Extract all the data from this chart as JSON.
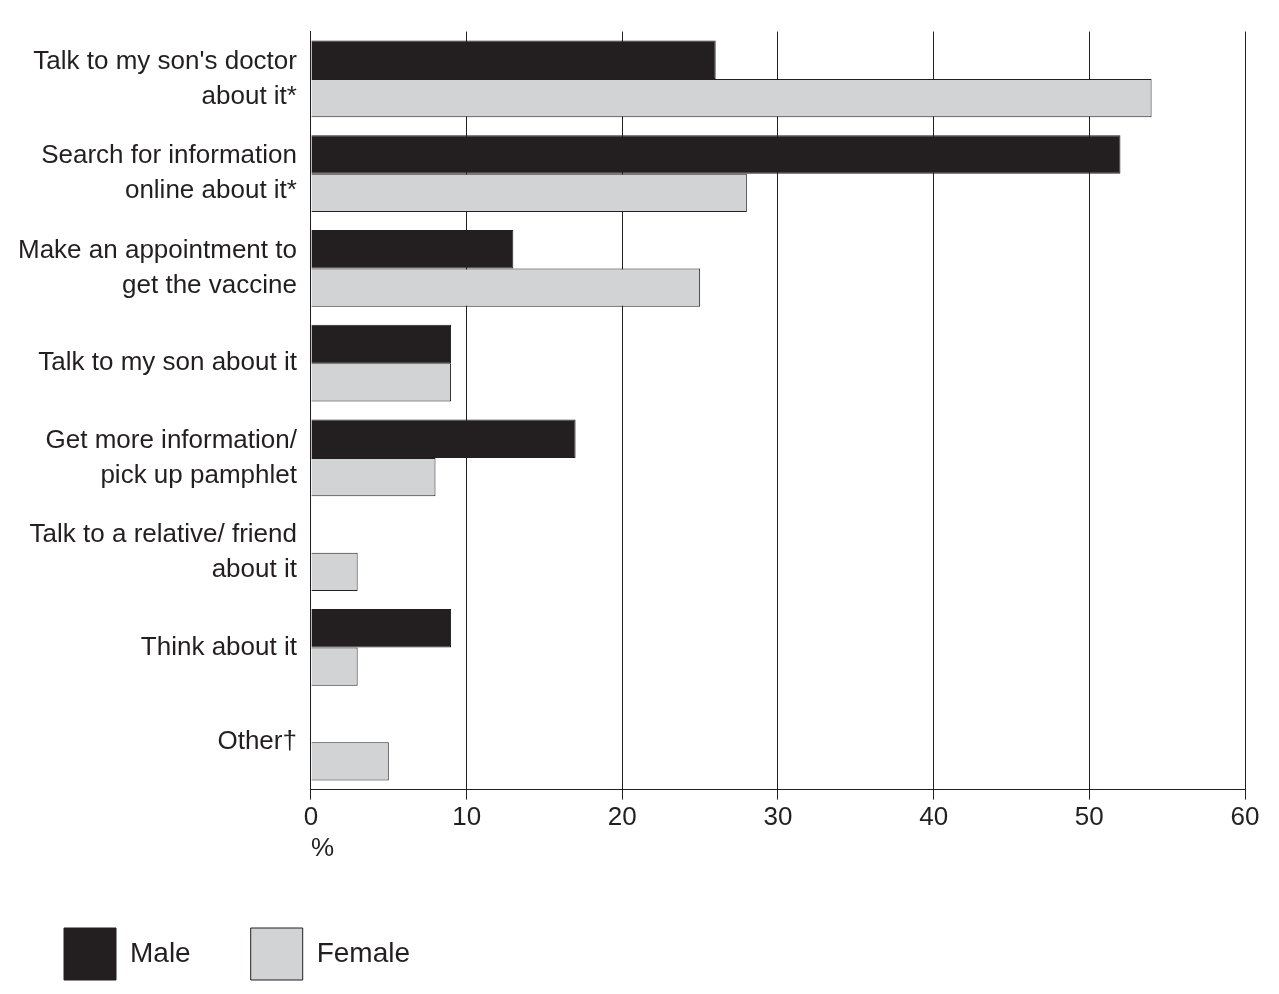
{
  "chart_data": {
    "type": "bar",
    "orientation": "horizontal",
    "xlabel": "%",
    "categories": [
      "Talk to my son's doctor about it*",
      "Search for information online about it*",
      "Make an appointment to get the vaccine",
      "Talk to my son about it",
      "Get more information/ pick up pamphlet",
      "Talk to a relative/ friend about it",
      "Think about it",
      "Other†"
    ],
    "series": [
      {
        "name": "Male",
        "color": "#231f20",
        "values": [
          26,
          52,
          13,
          9,
          17,
          0,
          9,
          0
        ]
      },
      {
        "name": "Female",
        "color": "#d1d3d4",
        "values": [
          54,
          28,
          25,
          9,
          8,
          3,
          3,
          5
        ]
      }
    ],
    "xlim": [
      0,
      60
    ],
    "xticks": [
      0,
      10,
      20,
      30,
      40,
      50,
      60
    ],
    "grid": "x",
    "legend": "bottom left"
  }
}
